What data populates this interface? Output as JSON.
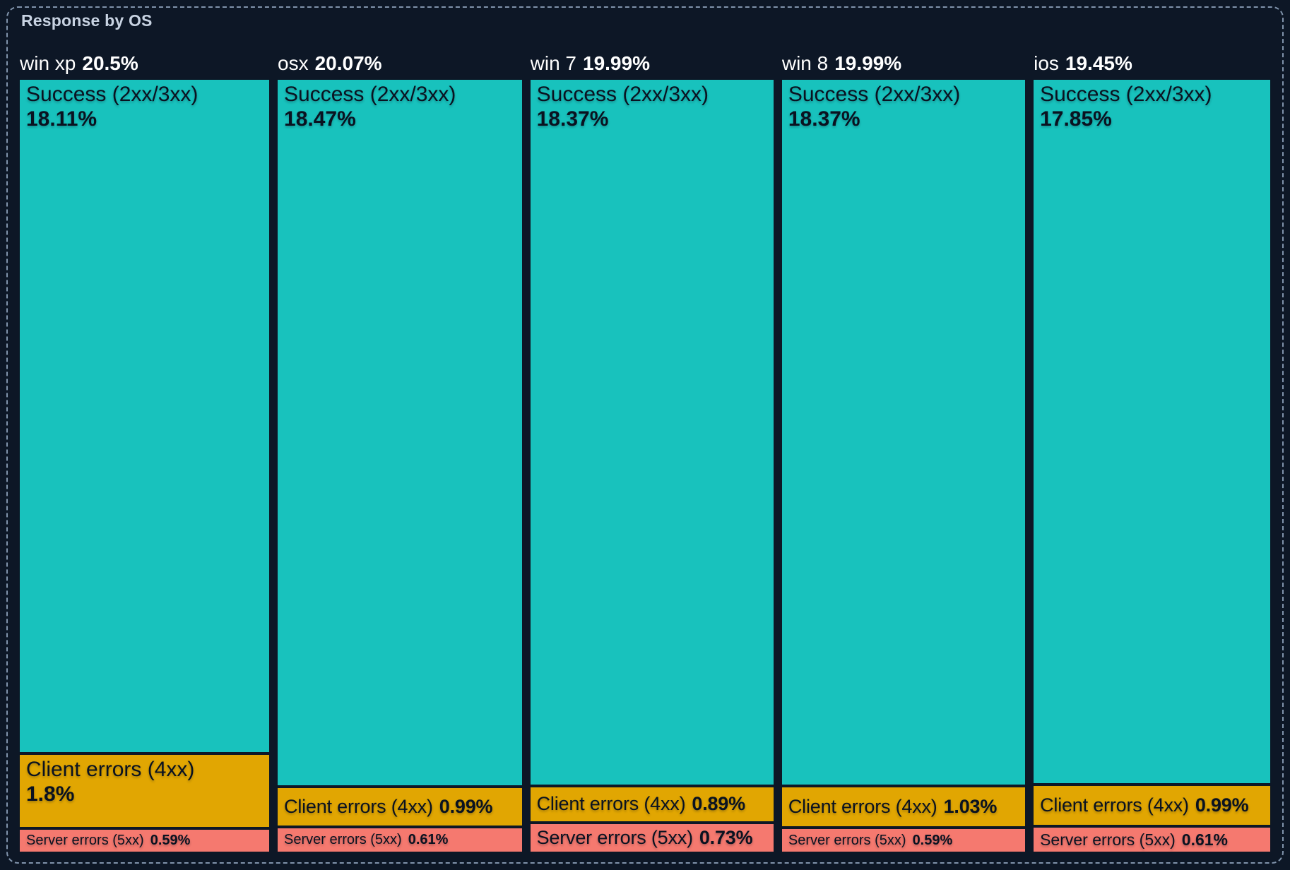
{
  "title": "Response by OS",
  "theme": {
    "background": "#0d1726",
    "frame_border": "#8093ab",
    "title_color": "#c8d3e2",
    "header_text": "#ffffff",
    "segment_text": "#0a1220"
  },
  "chart_data": {
    "type": "treemap",
    "title": "Response by OS",
    "value_unit": "percent of total responses",
    "legend": "none",
    "orientation": "columns-by-os-with-stacked-status-segments",
    "colors": {
      "success": "#18c2bd",
      "client": "#e1a602",
      "server": "#f5796f"
    },
    "columns": [
      {
        "name": "win xp",
        "pct": "20.5%",
        "value": 20.5,
        "segments": [
          {
            "series": "success",
            "label": "Success (2xx/3xx)",
            "pct": "18.11%",
            "value": 18.11,
            "variant": "stack"
          },
          {
            "series": "client",
            "label": "Client errors (4xx)",
            "pct": "1.8%",
            "value": 1.8,
            "variant": "stack"
          },
          {
            "series": "server",
            "label": "Server errors (5xx)",
            "pct": "0.59%",
            "value": 0.59,
            "variant": "line-sm"
          }
        ]
      },
      {
        "name": "osx",
        "pct": "20.07%",
        "value": 20.07,
        "segments": [
          {
            "series": "success",
            "label": "Success (2xx/3xx)",
            "pct": "18.47%",
            "value": 18.47,
            "variant": "stack"
          },
          {
            "series": "client",
            "label": "Client errors (4xx)",
            "pct": "0.99%",
            "value": 0.99,
            "variant": "line-lg"
          },
          {
            "series": "server",
            "label": "Server errors (5xx)",
            "pct": "0.61%",
            "value": 0.61,
            "variant": "line-sm"
          }
        ]
      },
      {
        "name": "win 7",
        "pct": "19.99%",
        "value": 19.99,
        "segments": [
          {
            "series": "success",
            "label": "Success (2xx/3xx)",
            "pct": "18.37%",
            "value": 18.37,
            "variant": "stack"
          },
          {
            "series": "client",
            "label": "Client errors (4xx)",
            "pct": "0.89%",
            "value": 0.89,
            "variant": "line-lg"
          },
          {
            "series": "server",
            "label": "Server errors (5xx)",
            "pct": "0.73%",
            "value": 0.73,
            "variant": "line-lg"
          }
        ]
      },
      {
        "name": "win 8",
        "pct": "19.99%",
        "value": 19.99,
        "segments": [
          {
            "series": "success",
            "label": "Success (2xx/3xx)",
            "pct": "18.37%",
            "value": 18.37,
            "variant": "stack"
          },
          {
            "series": "client",
            "label": "Client errors (4xx)",
            "pct": "1.03%",
            "value": 1.03,
            "variant": "line-lg"
          },
          {
            "series": "server",
            "label": "Server errors (5xx)",
            "pct": "0.59%",
            "value": 0.59,
            "variant": "line-sm"
          }
        ]
      },
      {
        "name": "ios",
        "pct": "19.45%",
        "value": 19.45,
        "segments": [
          {
            "series": "success",
            "label": "Success (2xx/3xx)",
            "pct": "17.85%",
            "value": 17.85,
            "variant": "stack"
          },
          {
            "series": "client",
            "label": "Client errors (4xx)",
            "pct": "0.99%",
            "value": 0.99,
            "variant": "line-lg"
          },
          {
            "series": "server",
            "label": "Server errors (5xx)",
            "pct": "0.61%",
            "value": 0.61,
            "variant": "line-md"
          }
        ]
      }
    ]
  }
}
